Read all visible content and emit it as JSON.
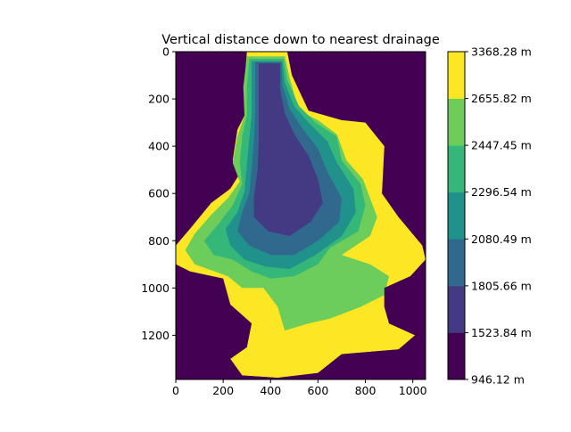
{
  "chart_data": {
    "type": "heatmap",
    "title": "Vertical distance down to nearest drainage",
    "xlabel": "",
    "ylabel": "",
    "xlim": [
      0,
      1054
    ],
    "ylim": [
      1387,
      0
    ],
    "xticks": [
      0,
      200,
      400,
      600,
      800,
      1000
    ],
    "yticks": [
      0,
      200,
      400,
      600,
      800,
      1000,
      1200
    ],
    "xtick_labels": [
      "0",
      "200",
      "400",
      "600",
      "800",
      "1000"
    ],
    "ytick_labels": [
      "0",
      "200",
      "400",
      "600",
      "800",
      "1000",
      "1200"
    ],
    "colorbar": {
      "levels": [
        946.12,
        1523.84,
        1805.66,
        2080.49,
        2296.54,
        2447.45,
        2655.82,
        3368.28
      ],
      "labels": [
        "946.12 m",
        "1523.84 m",
        "1805.66 m",
        "2080.49 m",
        "2296.54 m",
        "2447.45 m",
        "2655.82 m",
        "3368.28 m"
      ],
      "colors": [
        "#440154",
        "#443a83",
        "#31688e",
        "#21918c",
        "#35b779",
        "#6ccd5a",
        "#fde725"
      ]
    },
    "background_color": "#440154",
    "grid": false
  }
}
